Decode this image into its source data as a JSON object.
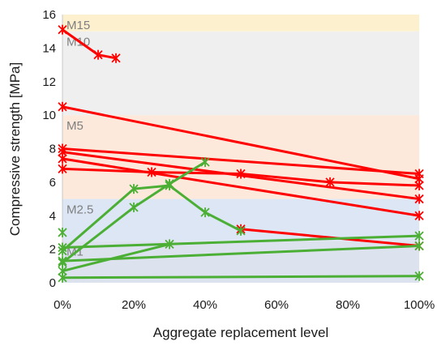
{
  "chart_data": {
    "type": "line",
    "xlabel": "Aggregate replacement level",
    "ylabel": "Compressive strength [MPa]",
    "xlim": [
      0,
      100
    ],
    "ylim": [
      0,
      16
    ],
    "x_ticks": [
      "0%",
      "20%",
      "40%",
      "60%",
      "80%",
      "100%"
    ],
    "x_tick_values": [
      0,
      20,
      40,
      60,
      80,
      100
    ],
    "y_ticks": [
      "0",
      "2",
      "4",
      "6",
      "8",
      "10",
      "12",
      "14",
      "16"
    ],
    "y_tick_values": [
      0,
      2,
      4,
      6,
      8,
      10,
      12,
      14,
      16
    ],
    "grid": false,
    "bands": [
      {
        "label": "M1",
        "from": 0,
        "to": 2.5,
        "color": "#dde3ee"
      },
      {
        "label": "M2.5",
        "from": 2.5,
        "to": 5,
        "color": "#dce6f4"
      },
      {
        "label": "M5",
        "from": 5,
        "to": 10,
        "color": "#fde9dc"
      },
      {
        "label": "M10",
        "from": 10,
        "to": 15,
        "color": "#efefef"
      },
      {
        "label": "M15",
        "from": 15,
        "to": 16,
        "color": "#fdf0cf"
      }
    ],
    "colors": {
      "red": "#ff0000",
      "green": "#4caf35"
    },
    "series": [
      {
        "color": "red",
        "points": [
          [
            0,
            15.1
          ],
          [
            10,
            13.6
          ],
          [
            15,
            13.4
          ]
        ]
      },
      {
        "color": "red",
        "points": [
          [
            0,
            10.5
          ],
          [
            100,
            6.2
          ]
        ]
      },
      {
        "color": "red",
        "points": [
          [
            0,
            8.0
          ],
          [
            100,
            6.5
          ]
        ]
      },
      {
        "color": "red",
        "points": [
          [
            0,
            7.8
          ],
          [
            100,
            5.0
          ]
        ]
      },
      {
        "color": "red",
        "points": [
          [
            0,
            7.4
          ],
          [
            100,
            4.0
          ]
        ]
      },
      {
        "color": "red",
        "points": [
          [
            0,
            6.8
          ],
          [
            25,
            6.6
          ],
          [
            50,
            6.5
          ],
          [
            75,
            6.0
          ],
          [
            100,
            5.8
          ]
        ]
      },
      {
        "color": "red",
        "points": [
          [
            50,
            3.2
          ],
          [
            100,
            2.2
          ]
        ]
      },
      {
        "color": "green",
        "points": [
          [
            0,
            1.2
          ],
          [
            20,
            4.5
          ],
          [
            30,
            5.9
          ],
          [
            40,
            7.2
          ]
        ]
      },
      {
        "color": "green",
        "points": [
          [
            0,
            1.9
          ],
          [
            20,
            5.6
          ],
          [
            30,
            5.8
          ],
          [
            40,
            4.2
          ],
          [
            50,
            3.1
          ]
        ]
      },
      {
        "color": "green",
        "points": [
          [
            0,
            3.0
          ]
        ]
      },
      {
        "color": "green",
        "points": [
          [
            0,
            2.1
          ],
          [
            100,
            2.8
          ]
        ]
      },
      {
        "color": "green",
        "points": [
          [
            0,
            1.3
          ],
          [
            100,
            2.2
          ]
        ]
      },
      {
        "color": "green",
        "points": [
          [
            0,
            0.7
          ],
          [
            30,
            2.3
          ]
        ]
      },
      {
        "color": "green",
        "points": [
          [
            0,
            0.3
          ],
          [
            100,
            0.4
          ]
        ]
      }
    ]
  }
}
